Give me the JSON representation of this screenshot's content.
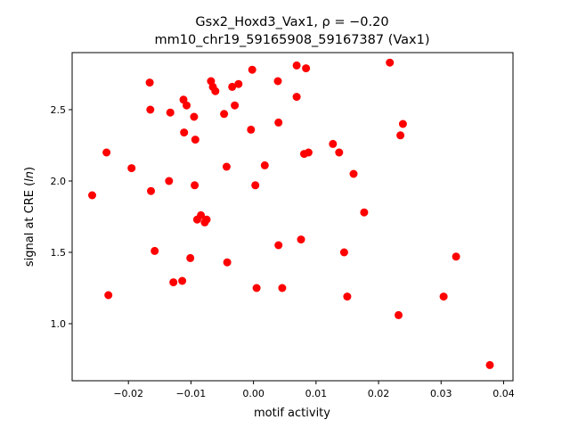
{
  "chart_data": {
    "type": "scatter",
    "title_line1": "Gsx2_Hoxd3_Vax1, ρ = −0.20",
    "title_line2": "mm10_chr19_59165908_59167387 (Vax1)",
    "xlabel": "motif activity",
    "ylabel": "signal at CRE (ln)",
    "xlim": [
      -0.029,
      0.0415
    ],
    "ylim": [
      0.6,
      2.9
    ],
    "xticks": [
      -0.02,
      -0.01,
      0.0,
      0.01,
      0.02,
      0.03,
      0.04
    ],
    "xtick_labels": [
      "−0.02",
      "−0.01",
      "0.00",
      "0.01",
      "0.02",
      "0.03",
      "0.04"
    ],
    "yticks": [
      1.0,
      1.5,
      2.0,
      2.5
    ],
    "ytick_labels": [
      "1.0",
      "1.5",
      "2.0",
      "2.5"
    ],
    "grid": false,
    "marker_color": "#ff0000",
    "points": [
      {
        "x": -0.0258,
        "y": 1.9
      },
      {
        "x": -0.0235,
        "y": 2.2
      },
      {
        "x": -0.0232,
        "y": 1.2
      },
      {
        "x": -0.0195,
        "y": 2.09
      },
      {
        "x": -0.0166,
        "y": 2.69
      },
      {
        "x": -0.0165,
        "y": 2.5
      },
      {
        "x": -0.0164,
        "y": 1.93
      },
      {
        "x": -0.0158,
        "y": 1.51
      },
      {
        "x": -0.0135,
        "y": 2.0
      },
      {
        "x": -0.0133,
        "y": 2.48
      },
      {
        "x": -0.0128,
        "y": 1.29
      },
      {
        "x": -0.0114,
        "y": 1.3
      },
      {
        "x": -0.0112,
        "y": 2.57
      },
      {
        "x": -0.0111,
        "y": 2.34
      },
      {
        "x": -0.0107,
        "y": 2.53
      },
      {
        "x": -0.0101,
        "y": 1.46
      },
      {
        "x": -0.0095,
        "y": 2.45
      },
      {
        "x": -0.0094,
        "y": 1.97
      },
      {
        "x": -0.0093,
        "y": 2.29
      },
      {
        "x": -0.009,
        "y": 1.73
      },
      {
        "x": -0.0084,
        "y": 1.76
      },
      {
        "x": -0.0078,
        "y": 1.71
      },
      {
        "x": -0.0075,
        "y": 1.73
      },
      {
        "x": -0.0068,
        "y": 2.7
      },
      {
        "x": -0.0065,
        "y": 2.66
      },
      {
        "x": -0.0061,
        "y": 2.63
      },
      {
        "x": -0.0047,
        "y": 2.47
      },
      {
        "x": -0.0043,
        "y": 2.1
      },
      {
        "x": -0.0042,
        "y": 1.43
      },
      {
        "x": -0.0034,
        "y": 2.66
      },
      {
        "x": -0.003,
        "y": 2.53
      },
      {
        "x": -0.0024,
        "y": 2.68
      },
      {
        "x": -0.0004,
        "y": 2.36
      },
      {
        "x": -0.0002,
        "y": 2.78
      },
      {
        "x": 0.0003,
        "y": 1.97
      },
      {
        "x": 0.0005,
        "y": 1.25
      },
      {
        "x": 0.0018,
        "y": 2.11
      },
      {
        "x": 0.0039,
        "y": 2.7
      },
      {
        "x": 0.004,
        "y": 2.41
      },
      {
        "x": 0.004,
        "y": 1.55
      },
      {
        "x": 0.0046,
        "y": 1.25
      },
      {
        "x": 0.0069,
        "y": 2.81
      },
      {
        "x": 0.0069,
        "y": 2.59
      },
      {
        "x": 0.0076,
        "y": 1.59
      },
      {
        "x": 0.0081,
        "y": 2.19
      },
      {
        "x": 0.0084,
        "y": 2.79
      },
      {
        "x": 0.0088,
        "y": 2.2
      },
      {
        "x": 0.0127,
        "y": 2.26
      },
      {
        "x": 0.0137,
        "y": 2.2
      },
      {
        "x": 0.0145,
        "y": 1.5
      },
      {
        "x": 0.015,
        "y": 1.19
      },
      {
        "x": 0.016,
        "y": 2.05
      },
      {
        "x": 0.0177,
        "y": 1.78
      },
      {
        "x": 0.0218,
        "y": 2.83
      },
      {
        "x": 0.0232,
        "y": 1.06
      },
      {
        "x": 0.0235,
        "y": 2.32
      },
      {
        "x": 0.0239,
        "y": 2.4
      },
      {
        "x": 0.0304,
        "y": 1.19
      },
      {
        "x": 0.0324,
        "y": 1.47
      },
      {
        "x": 0.0378,
        "y": 0.71
      }
    ]
  }
}
